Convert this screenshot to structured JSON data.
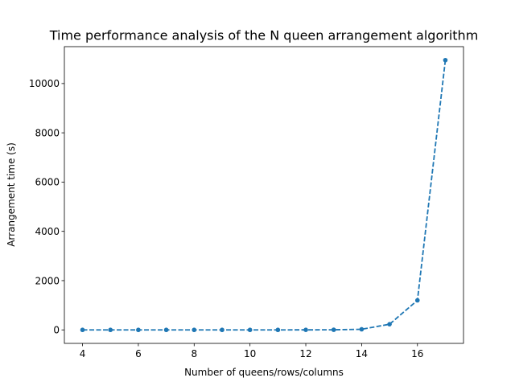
{
  "chart_data": {
    "type": "line",
    "title": "Time performance analysis of the N queen arrangement algorithm",
    "xlabel": "Number of queens/rows/columns",
    "ylabel": "Arrangement time (s)",
    "x": [
      4,
      5,
      6,
      7,
      8,
      9,
      10,
      11,
      12,
      13,
      14,
      15,
      16,
      17
    ],
    "series": [
      {
        "values": [
          0,
          0,
          0,
          0,
          0,
          0,
          0,
          0,
          1,
          4,
          25,
          230,
          1200,
          10950
        ],
        "color": "#1f77b4",
        "line_style": "dashed",
        "marker": "circle"
      }
    ],
    "xlim": [
      3.35,
      17.65
    ],
    "ylim": [
      -547.5,
      11497.5
    ],
    "xticks": [
      4,
      6,
      8,
      10,
      12,
      14,
      16
    ],
    "yticks": [
      0,
      2000,
      4000,
      6000,
      8000,
      10000
    ],
    "grid": false,
    "legend": false
  }
}
